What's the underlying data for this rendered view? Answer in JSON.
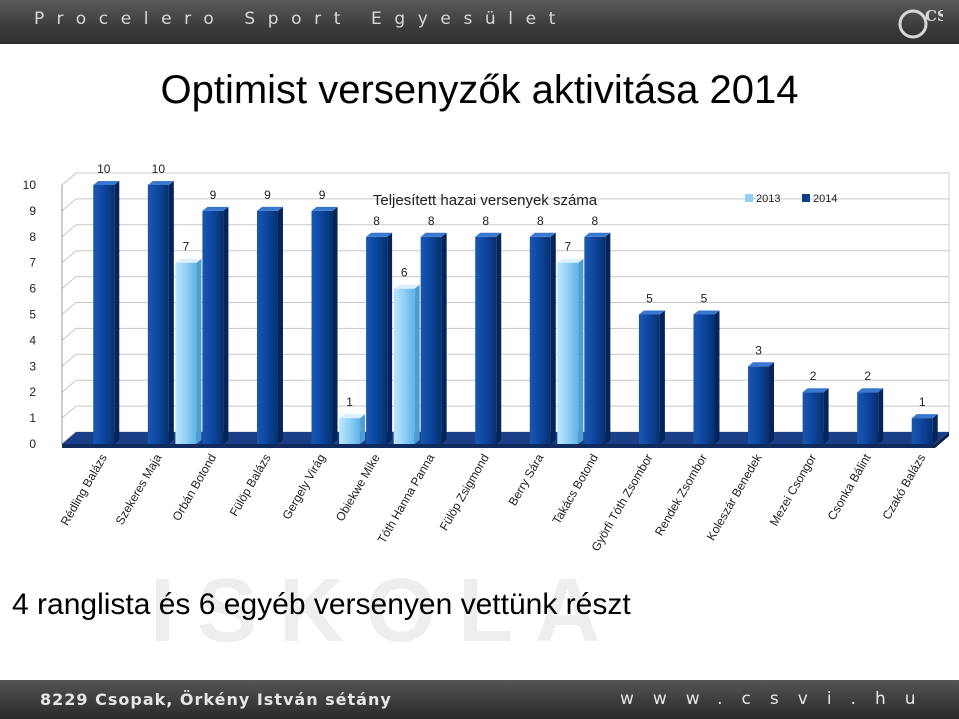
{
  "header": {
    "org_name": "Procelero Sport Egyesület",
    "logo_text": "CSVI"
  },
  "slide": {
    "title": "Optimist versenyzők aktivitása 2014",
    "subtitle": "4 ranglista és 6 egyéb versenyen vettünk részt",
    "watermark": "ISKOLA"
  },
  "footer": {
    "address": "8229 Csopak, Örkény István sétány",
    "website": "www.csvi.hu"
  },
  "colors": {
    "bar_2013": "#8fd0f7",
    "bar_2014": "#0c3f8c",
    "floor": "#1b3f86"
  },
  "chart_data": {
    "type": "bar",
    "title": "Teljesített hazai versenyek száma",
    "categories": [
      "Rédling Balázs",
      "Szekeres Maja",
      "Orbán Botond",
      "Fülöp Balázs",
      "Gergely Virág",
      "Obiekwe Mike",
      "Tóth Hanna Panna",
      "Fülöp Zsigmond",
      "Berry Sára",
      "Takács Botond",
      "Györfi Tóth Zsombor",
      "Rendek Zsombor",
      "Koleszár Benedek",
      "Mezei Csongor",
      "Csonka Bálint",
      "Czakó Balázs"
    ],
    "series": [
      {
        "name": "2013",
        "values": [
          null,
          null,
          7,
          null,
          null,
          1,
          6,
          null,
          null,
          7,
          null,
          null,
          null,
          null,
          null,
          null
        ]
      },
      {
        "name": "2014",
        "values": [
          10,
          10,
          9,
          9,
          9,
          8,
          8,
          8,
          8,
          8,
          5,
          5,
          3,
          2,
          2,
          1
        ]
      }
    ],
    "y_ticks": [
      "0",
      "1",
      "2",
      "3",
      "4",
      "5",
      "6",
      "7",
      "8",
      "9",
      "10"
    ],
    "ylim": [
      0,
      10
    ],
    "legend_position": "top-right",
    "grid": true
  }
}
